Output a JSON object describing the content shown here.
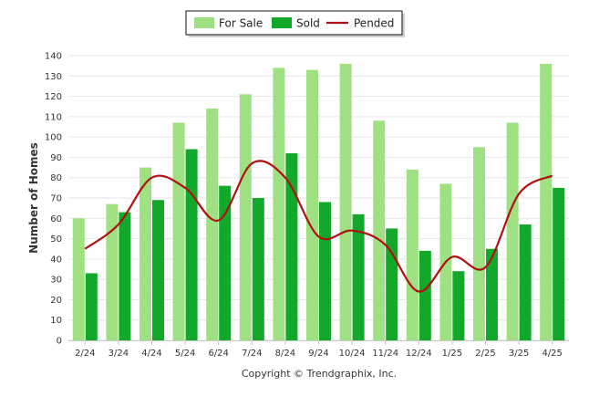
{
  "chart_data": {
    "type": "bar",
    "categories": [
      "2/24",
      "3/24",
      "4/24",
      "5/24",
      "6/24",
      "7/24",
      "8/24",
      "9/24",
      "10/24",
      "11/24",
      "12/24",
      "1/25",
      "2/25",
      "3/25",
      "4/25"
    ],
    "series": [
      {
        "name": "For Sale",
        "kind": "bar",
        "color": "#9fe083",
        "values": [
          60,
          67,
          85,
          107,
          114,
          121,
          134,
          133,
          136,
          108,
          84,
          77,
          95,
          107,
          136
        ]
      },
      {
        "name": "Sold",
        "kind": "bar",
        "color": "#12a82a",
        "values": [
          33,
          63,
          69,
          94,
          76,
          70,
          92,
          68,
          62,
          55,
          44,
          34,
          45,
          57,
          75
        ]
      },
      {
        "name": "Pended",
        "kind": "line",
        "color": "#b01010",
        "values": [
          45,
          57,
          80,
          75,
          59,
          87,
          80,
          51,
          54,
          47,
          24,
          41,
          36,
          72,
          81
        ]
      }
    ],
    "title": "",
    "xlabel": "",
    "ylabel": "Number of Homes",
    "ylim": [
      0,
      140
    ],
    "yticks": [
      0,
      10,
      20,
      30,
      40,
      50,
      60,
      70,
      80,
      90,
      100,
      110,
      120,
      130,
      140
    ],
    "grid": true,
    "legend_position": "top-center",
    "footer": "Copyright © Trendgraphix, Inc."
  }
}
